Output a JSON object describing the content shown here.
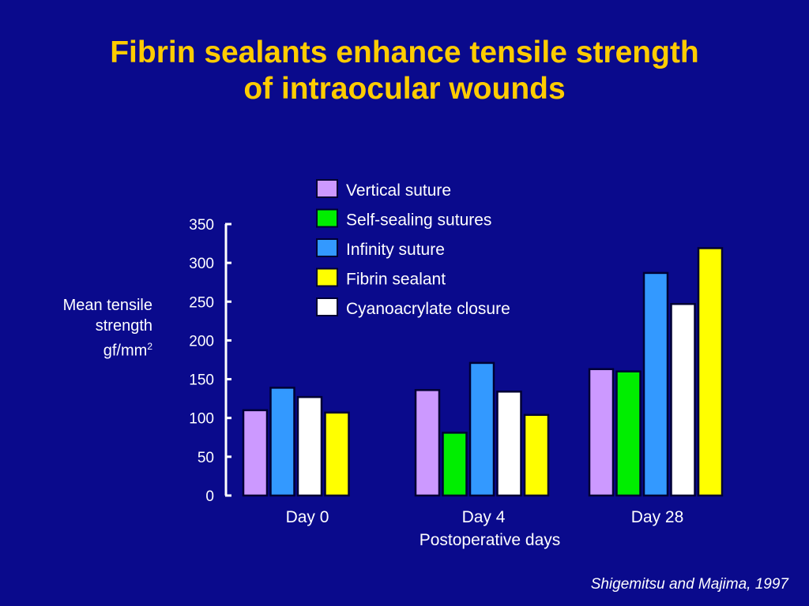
{
  "title_lines": [
    "Fibrin sealants enhance tensile strength",
    "of intraocular wounds"
  ],
  "source": "Shigemitsu and Majima, 1997",
  "colors": {
    "background": "#0a0a8c",
    "title": "#ffcc00",
    "text": "#ffffff",
    "bar_stroke": "#000033"
  },
  "chart_data": {
    "type": "bar",
    "title": "Fibrin sealants enhance tensile strength of intraocular wounds",
    "ylabel_lines": [
      "Mean tensile",
      "strength",
      "gf/mm"
    ],
    "ylabel_superscript": "2",
    "xlabel": "Postoperative days",
    "categories": [
      "Day 0",
      "Day 4",
      "Day 28"
    ],
    "ylim": [
      0,
      350
    ],
    "yticks": [
      0,
      50,
      100,
      150,
      200,
      250,
      300,
      350
    ],
    "grid": false,
    "legend_position": "top-center",
    "series": [
      {
        "name": "Vertical suture",
        "color": "#cc99ff",
        "values": [
          110,
          136,
          163
        ]
      },
      {
        "name": "Self-sealing sutures",
        "color": "#00ee00",
        "values": [
          null,
          81,
          160
        ]
      },
      {
        "name": "Infinity suture",
        "color": "#3399ff",
        "values": [
          139,
          171,
          287
        ]
      },
      {
        "name": "Fibrin sealant",
        "color": "#ffff00",
        "values": [
          107,
          104,
          319
        ]
      },
      {
        "name": "Cyanoacrylate closure",
        "color": "#ffffff",
        "values": [
          127,
          134,
          247
        ]
      }
    ],
    "bar_order": [
      [
        "Vertical suture",
        "Infinity suture",
        "Cyanoacrylate closure",
        "Fibrin sealant"
      ],
      [
        "Vertical suture",
        "Self-sealing sutures",
        "Infinity suture",
        "Cyanoacrylate closure",
        "Fibrin sealant"
      ],
      [
        "Vertical suture",
        "Self-sealing sutures",
        "Infinity suture",
        "Cyanoacrylate closure",
        "Fibrin sealant"
      ]
    ]
  }
}
